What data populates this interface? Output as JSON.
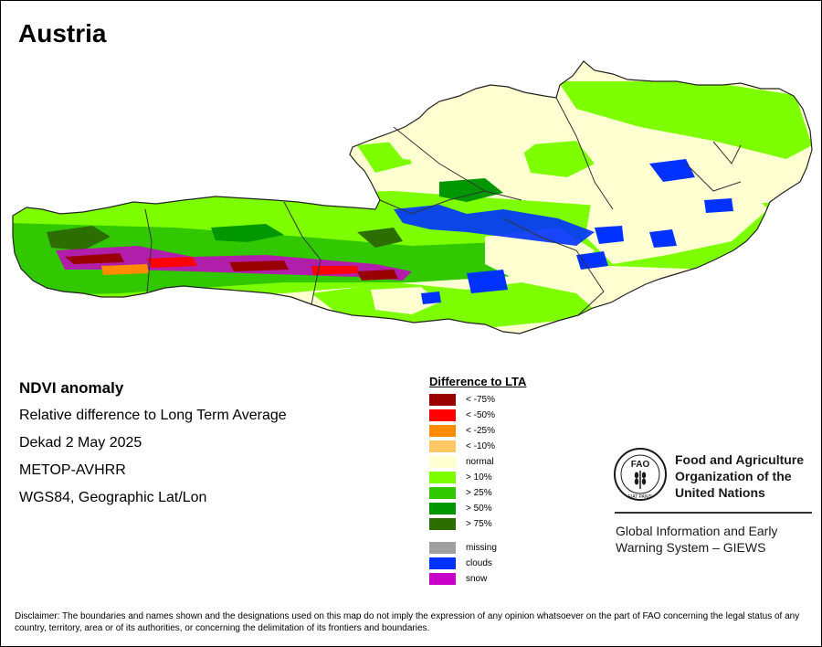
{
  "map": {
    "title": "Austria"
  },
  "info": {
    "heading": "NDVI anomaly",
    "subtitle": "Relative difference to Long Term Average",
    "period": "Dekad 2 May 2025",
    "sensor": "METOP-AVHRR",
    "projection": "WGS84, Geographic Lat/Lon"
  },
  "legend": {
    "title": "Difference to LTA",
    "classes": [
      {
        "label": "< -75%",
        "color": "#990000"
      },
      {
        "label": "< -50%",
        "color": "#ff0000"
      },
      {
        "label": "< -25%",
        "color": "#ff8c00"
      },
      {
        "label": "< -10%",
        "color": "#ffc864"
      },
      {
        "label": "normal",
        "color": "#ffffd2"
      },
      {
        "label": "> 10%",
        "color": "#7dff00"
      },
      {
        "label": "> 25%",
        "color": "#32c800"
      },
      {
        "label": "> 50%",
        "color": "#009600"
      },
      {
        "label": "> 75%",
        "color": "#2d6e00"
      }
    ],
    "special": [
      {
        "label": "missing",
        "color": "#a0a0a0"
      },
      {
        "label": "clouds",
        "color": "#0032ff"
      },
      {
        "label": "snow",
        "color": "#c800c8"
      }
    ]
  },
  "fao": {
    "emblem_text": "FAO",
    "motto": "FIAT PANIS",
    "org_lines": [
      "Food and Agriculture",
      "Organization of the",
      "United Nations"
    ],
    "giews_lines": [
      "Global Information and Early",
      "Warning System – GIEWS"
    ]
  },
  "disclaimer": "Disclaimer: The boundaries and names shown and the designations used on this map do not imply the expression of any opinion whatsoever on the part of FAO concerning the legal status of any country, territory, area or of its authorities, or concerning the delimitation of its frontiers and boundaries."
}
